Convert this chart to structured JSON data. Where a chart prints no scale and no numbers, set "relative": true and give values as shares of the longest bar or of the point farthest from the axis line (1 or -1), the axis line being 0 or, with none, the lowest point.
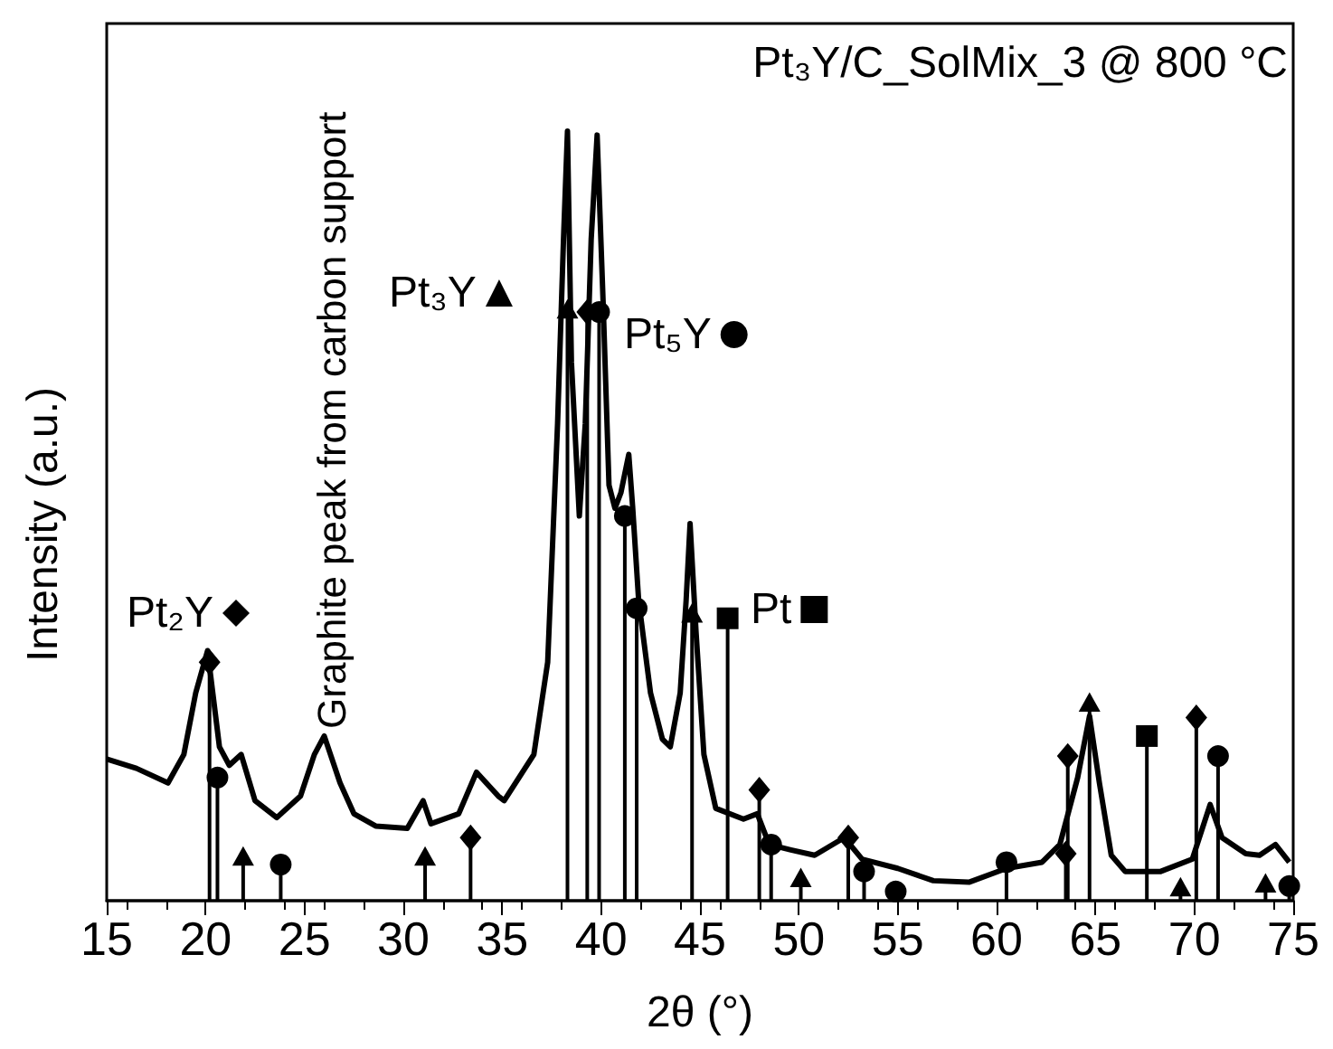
{
  "chart_data": {
    "type": "line",
    "title": "Pt₃Y/C_SolMix_3 @ 800 °C",
    "xlabel": "2θ (°)",
    "ylabel": "Intensity (a.u.)",
    "relative": true,
    "xlim": [
      15,
      75
    ],
    "xticks": [
      15,
      20,
      25,
      30,
      35,
      40,
      45,
      50,
      55,
      60,
      65,
      70,
      75
    ],
    "legend": "top",
    "annotations": [
      {
        "text": "Graphite peak from carbon support",
        "x": 26.0,
        "y": 0.214
      }
    ],
    "series": [
      {
        "color": "#000000",
        "x": [
          15.0,
          16.5,
          18.1,
          18.9,
          19.5,
          20.1,
          20.7,
          21.2,
          21.8,
          22.5,
          23.6,
          24.8,
          25.5,
          26.0,
          26.8,
          27.5,
          28.6,
          30.2,
          31.0,
          31.4,
          32.8,
          33.7,
          34.8,
          35.1,
          36.6,
          37.3,
          37.8,
          38.1,
          38.3,
          38.5,
          38.9,
          39.2,
          39.5,
          39.8,
          40.1,
          40.4,
          40.7,
          41.0,
          41.4,
          41.6,
          41.9,
          42.5,
          43.1,
          43.5,
          44.0,
          44.3,
          44.5,
          44.8,
          45.2,
          45.8,
          47.2,
          47.9,
          48.5,
          49.6,
          50.8,
          52.3,
          53.2,
          55.0,
          56.8,
          58.6,
          60.5,
          62.3,
          63.2,
          64.1,
          64.7,
          65.2,
          65.8,
          66.5,
          68.3,
          69.9,
          70.8,
          71.4,
          72.6,
          73.3,
          74.1,
          74.8
        ],
        "values": [
          0.184,
          0.172,
          0.153,
          0.19,
          0.27,
          0.325,
          0.2,
          0.176,
          0.19,
          0.13,
          0.108,
          0.136,
          0.19,
          0.214,
          0.153,
          0.113,
          0.097,
          0.094,
          0.13,
          0.1,
          0.113,
          0.167,
          0.136,
          0.13,
          0.19,
          0.31,
          0.62,
          0.86,
          1.0,
          0.7,
          0.5,
          0.62,
          0.86,
          0.995,
          0.78,
          0.54,
          0.51,
          0.53,
          0.58,
          0.51,
          0.39,
          0.27,
          0.21,
          0.2,
          0.27,
          0.39,
          0.49,
          0.35,
          0.19,
          0.12,
          0.106,
          0.113,
          0.073,
          0.066,
          0.059,
          0.082,
          0.054,
          0.042,
          0.026,
          0.024,
          0.042,
          0.05,
          0.073,
          0.16,
          0.24,
          0.153,
          0.059,
          0.038,
          0.038,
          0.054,
          0.125,
          0.082,
          0.061,
          0.059,
          0.073,
          0.05
        ]
      },
      {
        "type": "lollipop",
        "name": "Pt₂Y",
        "marker": "diamond",
        "color": "#000000",
        "x": [
          20.2,
          33.4,
          39.3,
          48.0,
          52.5,
          63.5,
          63.6,
          70.1
        ],
        "values": [
          0.31,
          0.082,
          0.765,
          0.144,
          0.082,
          0.061,
          0.188,
          0.238
        ]
      },
      {
        "type": "lollipop",
        "name": "Pt₃Y",
        "marker": "triangle",
        "color": "#000000",
        "x": [
          21.9,
          31.1,
          38.3,
          44.6,
          50.1,
          64.7,
          69.3,
          73.6
        ],
        "values": [
          0.054,
          0.054,
          0.765,
          0.37,
          0.026,
          0.254,
          0.014,
          0.019
        ]
      },
      {
        "type": "lollipop",
        "name": "Pt₅Y",
        "marker": "circle",
        "color": "#000000",
        "x": [
          20.6,
          23.8,
          39.9,
          41.2,
          41.8,
          48.6,
          53.3,
          54.9,
          60.5,
          71.2,
          74.8
        ],
        "values": [
          0.16,
          0.047,
          0.765,
          0.5,
          0.38,
          0.073,
          0.038,
          0.012,
          0.05,
          0.188,
          0.019
        ]
      },
      {
        "type": "lollipop",
        "name": "Pt",
        "marker": "square",
        "color": "#000000",
        "x": [
          46.4,
          67.6
        ],
        "values": [
          0.367,
          0.214
        ]
      }
    ]
  }
}
